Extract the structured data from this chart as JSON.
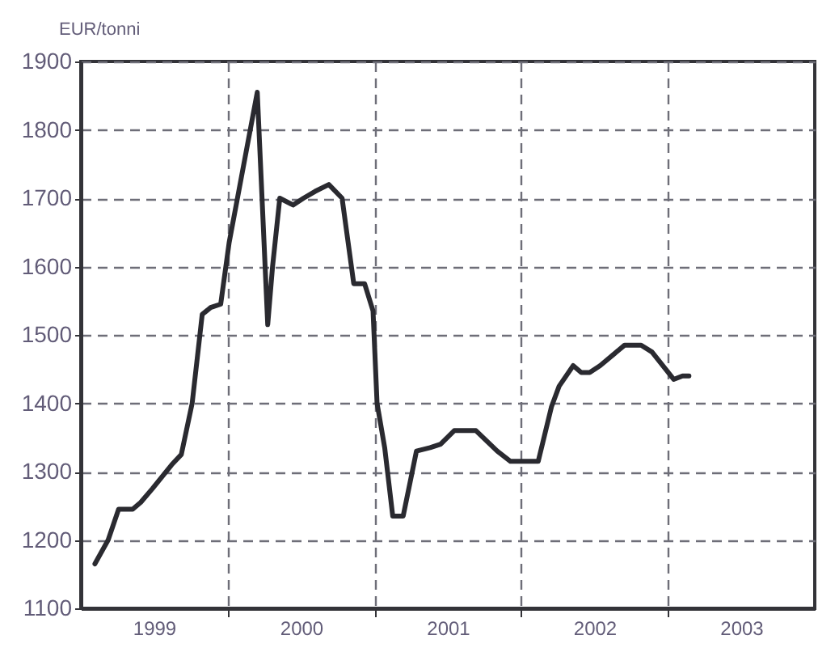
{
  "chart_data": {
    "type": "line",
    "ylabel": "EUR/tonni",
    "color": "#2a2a30",
    "x": [
      "1999-02-05",
      "1999-03-10",
      "1999-04-05",
      "1999-05-10",
      "1999-05-30",
      "1999-06-28",
      "1999-08-15",
      "1999-09-08",
      "1999-10-05",
      "1999-10-30",
      "1999-11-20",
      "1999-12-15",
      "2000-01-05",
      "2000-03-15",
      "2000-04-10",
      "2000-04-22",
      "2000-05-10",
      "2000-06-12",
      "2000-07-08",
      "2000-08-06",
      "2000-09-09",
      "2000-10-12",
      "2000-11-10",
      "2000-12-07",
      "2000-12-28",
      "2001-01-07",
      "2001-01-26",
      "2001-02-15",
      "2001-03-13",
      "2001-04-15",
      "2001-05-19",
      "2001-06-14",
      "2001-07-18",
      "2001-09-10",
      "2001-11-02",
      "2001-12-05",
      "2002-02-12",
      "2002-03-17",
      "2002-04-05",
      "2002-05-10",
      "2002-05-30",
      "2002-06-20",
      "2002-07-16",
      "2002-09-15",
      "2002-10-26",
      "2002-11-22",
      "2003-01-15",
      "2003-02-06",
      "2003-02-22"
    ],
    "values": [
      1165,
      1200,
      1245,
      1245,
      1255,
      1275,
      1310,
      1325,
      1400,
      1530,
      1540,
      1545,
      1635,
      1855,
      1515,
      1600,
      1700,
      1690,
      1700,
      1710,
      1720,
      1700,
      1575,
      1575,
      1535,
      1400,
      1335,
      1235,
      1235,
      1330,
      1335,
      1340,
      1360,
      1360,
      1330,
      1315,
      1315,
      1395,
      1425,
      1455,
      1445,
      1445,
      1455,
      1485,
      1485,
      1475,
      1435,
      1440,
      1440
    ],
    "xlim": [
      "1999-01-01",
      "2004-01-01"
    ],
    "xticks": [
      {
        "value": "1999-07-02",
        "label": "1999"
      },
      {
        "value": "2000-01-01",
        "label": null
      },
      {
        "value": "2000-07-02",
        "label": "2000"
      },
      {
        "value": "2001-01-01",
        "label": null
      },
      {
        "value": "2001-07-02",
        "label": "2001"
      },
      {
        "value": "2002-01-01",
        "label": null
      },
      {
        "value": "2002-07-02",
        "label": "2002"
      },
      {
        "value": "2003-01-01",
        "label": null
      },
      {
        "value": "2003-07-02",
        "label": "2003"
      }
    ],
    "ylim": [
      1100,
      1900
    ],
    "yticks": [
      1100,
      1200,
      1300,
      1400,
      1500,
      1600,
      1700,
      1800,
      1900
    ],
    "grid": true
  }
}
